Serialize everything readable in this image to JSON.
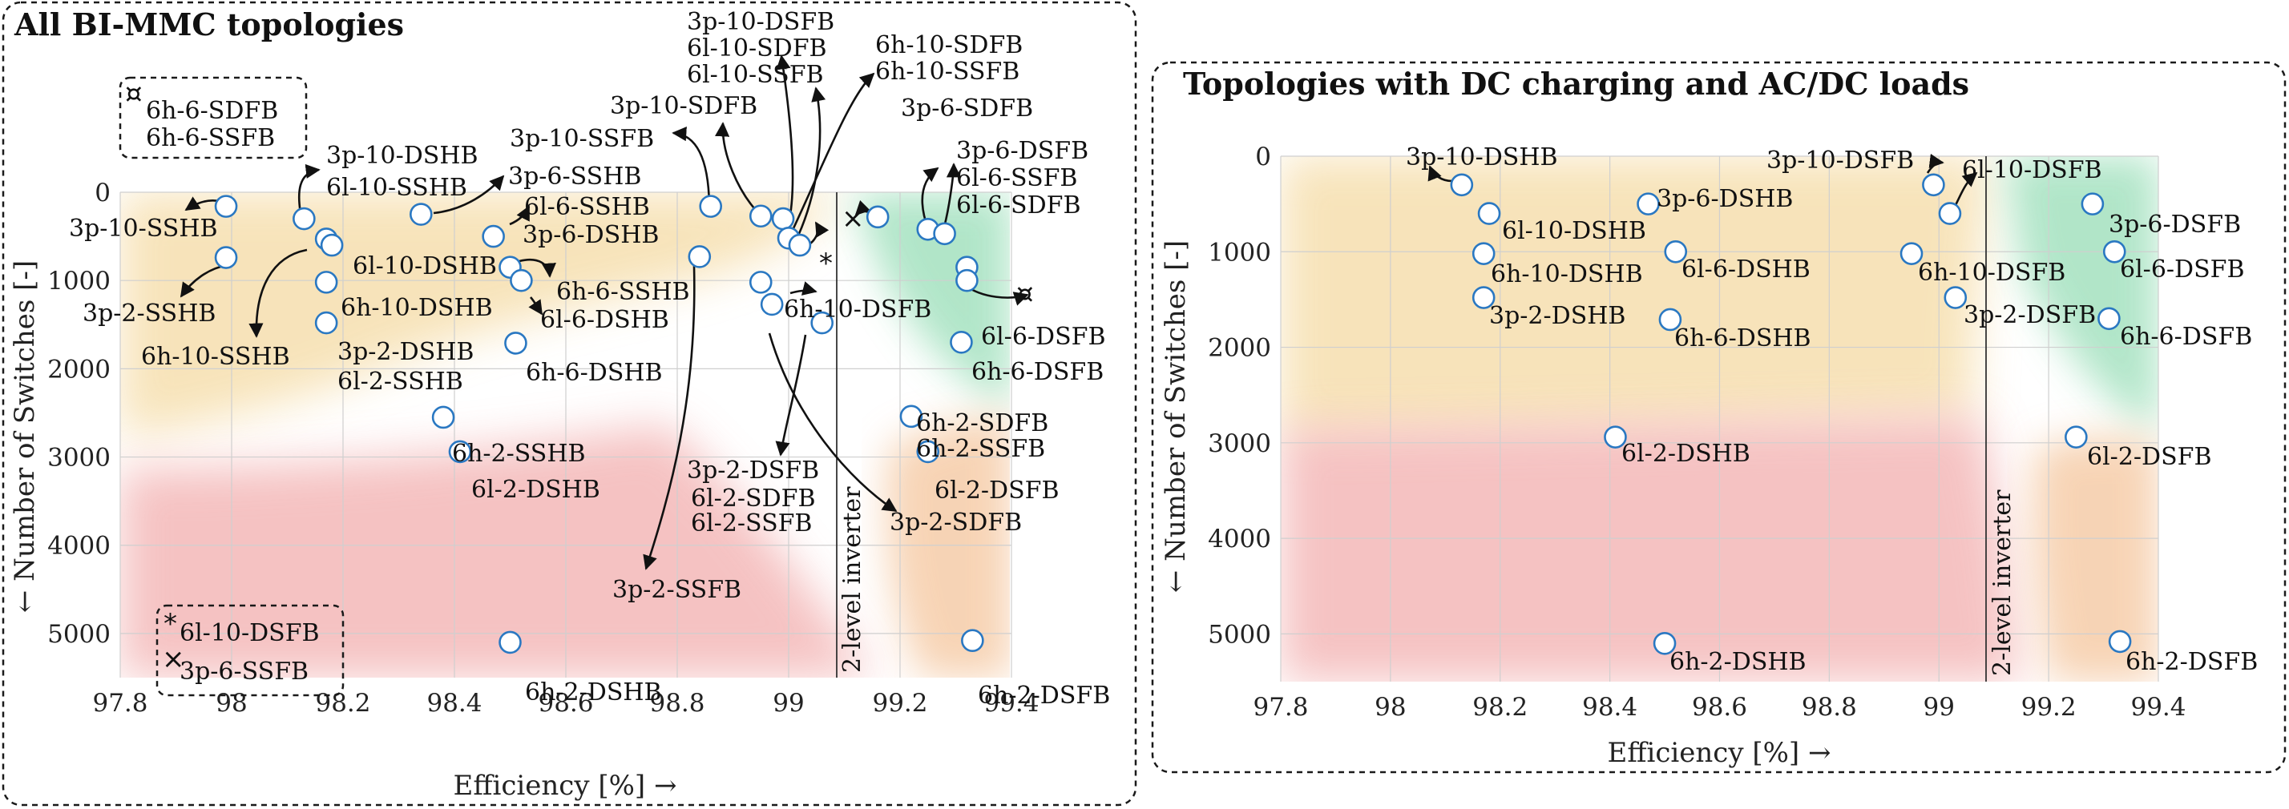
{
  "chart_data": [
    {
      "type": "scatter",
      "title": "All BI-MMC topologies",
      "xlabel": "Efficiency [%] →",
      "ylabel": "← Number of Switches [-]",
      "xlim": [
        97.8,
        99.4
      ],
      "ylim": [
        0,
        5500
      ],
      "y_reversed": true,
      "xticks": [
        "97.8",
        "98",
        "98.2",
        "98.4",
        "98.6",
        "98.8",
        "99",
        "99.2",
        "99.4"
      ],
      "yticks": [
        "0",
        "1000",
        "2000",
        "3000",
        "4000",
        "5000"
      ],
      "grid": true,
      "vline": {
        "x": 99.09,
        "label": "2-level inverter"
      },
      "points": [
        {
          "x": 97.99,
          "y": 160
        },
        {
          "x": 97.99,
          "y": 740
        },
        {
          "x": 98.13,
          "y": 300
        },
        {
          "x": 98.17,
          "y": 530
        },
        {
          "x": 98.18,
          "y": 600
        },
        {
          "x": 98.17,
          "y": 1020
        },
        {
          "x": 98.17,
          "y": 1480
        },
        {
          "x": 98.34,
          "y": 250
        },
        {
          "x": 98.47,
          "y": 500
        },
        {
          "x": 98.5,
          "y": 850
        },
        {
          "x": 98.52,
          "y": 1000
        },
        {
          "x": 98.51,
          "y": 1710
        },
        {
          "x": 98.38,
          "y": 2550
        },
        {
          "x": 98.41,
          "y": 2940
        },
        {
          "x": 98.5,
          "y": 5100
        },
        {
          "x": 98.86,
          "y": 160
        },
        {
          "x": 98.84,
          "y": 730
        },
        {
          "x": 98.95,
          "y": 270
        },
        {
          "x": 98.99,
          "y": 300
        },
        {
          "x": 99.0,
          "y": 520
        },
        {
          "x": 99.02,
          "y": 600
        },
        {
          "x": 98.95,
          "y": 1020
        },
        {
          "x": 98.97,
          "y": 1270
        },
        {
          "x": 99.06,
          "y": 1480
        },
        {
          "x": 99.16,
          "y": 280
        },
        {
          "x": 99.25,
          "y": 420
        },
        {
          "x": 99.28,
          "y": 470
        },
        {
          "x": 99.32,
          "y": 850
        },
        {
          "x": 99.32,
          "y": 1000
        },
        {
          "x": 99.31,
          "y": 1700
        },
        {
          "x": 99.22,
          "y": 2540
        },
        {
          "x": 99.25,
          "y": 2940
        },
        {
          "x": 99.33,
          "y": 5080
        }
      ],
      "labels": [
        "3p-10-SSHB",
        "3p-2-SSHB",
        "6h-10-SSHB",
        "3p-10-DSHB",
        "6l-10-SSHB",
        "6l-10-DSHB",
        "6h-10-DSHB",
        "3p-2-DSHB",
        "6l-2-SSHB",
        "3p-6-SSHB",
        "6l-6-SSHB",
        "3p-6-DSHB",
        "6h-6-SSHB",
        "6l-6-DSHB",
        "6h-6-DSHB",
        "6h-2-SSHB",
        "6l-2-DSHB",
        "6h-2-DSHB",
        "3p-10-SSFB",
        "3p-10-SDFB",
        "3p-10-DSFB",
        "6l-10-SDFB",
        "6l-10-SSFB",
        "6h-10-SDFB",
        "6h-10-SSFB",
        "3p-6-SDFB",
        "6h-10-DSFB",
        "3p-6-DSFB",
        "6l-6-SSFB",
        "6l-6-SDFB",
        "6l-6-DSFB",
        "6h-6-DSFB",
        "3p-2-DSFB",
        "6l-2-SDFB",
        "6l-2-SSFB",
        "3p-2-SSFB",
        "6h-2-SDFB",
        "6h-2-SSFB",
        "6l-2-DSFB",
        "3p-2-SDFB",
        "6h-2-DSFB"
      ],
      "legend_boxes": [
        {
          "marker": "¤",
          "entries": [
            "6h-6-SDFB",
            "6h-6-SSFB"
          ]
        },
        {
          "marker": "*×",
          "entries": [
            "6l-10-DSFB",
            "3p-6-SSFB"
          ]
        }
      ],
      "special_points": [
        {
          "marker": "×",
          "label": "3p-6-SSFB",
          "x": 99.11,
          "y": 250
        },
        {
          "marker": "*",
          "label": "6l-10-DSFB",
          "x": 99.07,
          "y": 690
        },
        {
          "marker": "¤",
          "label": "6h-6-SDFB / 6h-6-SSFB",
          "x": 99.44,
          "y": 1000
        }
      ],
      "regions": [
        {
          "color": "#f6dfae",
          "meaning": "half-bridge region"
        },
        {
          "color": "#a9e3c3",
          "meaning": "full-bridge low count region"
        },
        {
          "color": "#f3b3b3",
          "meaning": "high switch count region"
        },
        {
          "color": "#f5c9a3",
          "meaning": "full-bridge high count region"
        }
      ]
    },
    {
      "type": "scatter",
      "title": "Topologies with DC charging and AC/DC loads",
      "xlabel": "Efficiency [%] →",
      "ylabel": "← Number of Switches [-]",
      "xlim": [
        97.8,
        99.4
      ],
      "ylim": [
        0,
        5500
      ],
      "y_reversed": true,
      "xticks": [
        "97.8",
        "98",
        "98.2",
        "98.4",
        "98.6",
        "98.8",
        "99",
        "99.2",
        "99.4"
      ],
      "yticks": [
        "0",
        "1000",
        "2000",
        "3000",
        "4000",
        "5000"
      ],
      "grid": true,
      "vline": {
        "x": 99.09,
        "label": "2-level inverter"
      },
      "points": [
        {
          "x": 98.13,
          "y": 300,
          "label": "3p-10-DSHB"
        },
        {
          "x": 98.18,
          "y": 600,
          "label": "6l-10-DSHB"
        },
        {
          "x": 98.17,
          "y": 1020,
          "label": "6h-10-DSHB"
        },
        {
          "x": 98.17,
          "y": 1480,
          "label": "3p-2-DSHB"
        },
        {
          "x": 98.47,
          "y": 500,
          "label": "3p-6-DSHB"
        },
        {
          "x": 98.52,
          "y": 1000,
          "label": "6l-6-DSHB"
        },
        {
          "x": 98.51,
          "y": 1710,
          "label": "6h-6-DSHB"
        },
        {
          "x": 98.41,
          "y": 2940,
          "label": "6l-2-DSHB"
        },
        {
          "x": 98.5,
          "y": 5100,
          "label": "6h-2-DSHB"
        },
        {
          "x": 98.99,
          "y": 300,
          "label": "3p-10-DSFB"
        },
        {
          "x": 99.02,
          "y": 600,
          "label": "6l-10-DSFB"
        },
        {
          "x": 98.95,
          "y": 1020,
          "label": "6h-10-DSFB"
        },
        {
          "x": 99.03,
          "y": 1480,
          "label": "3p-2-DSFB"
        },
        {
          "x": 99.28,
          "y": 500,
          "label": "3p-6-DSFB"
        },
        {
          "x": 99.32,
          "y": 1000,
          "label": "6l-6-DSFB"
        },
        {
          "x": 99.31,
          "y": 1700,
          "label": "6h-6-DSFB"
        },
        {
          "x": 99.25,
          "y": 2940,
          "label": "6l-2-DSFB"
        },
        {
          "x": 99.33,
          "y": 5080,
          "label": "6h-2-DSFB"
        }
      ]
    }
  ]
}
